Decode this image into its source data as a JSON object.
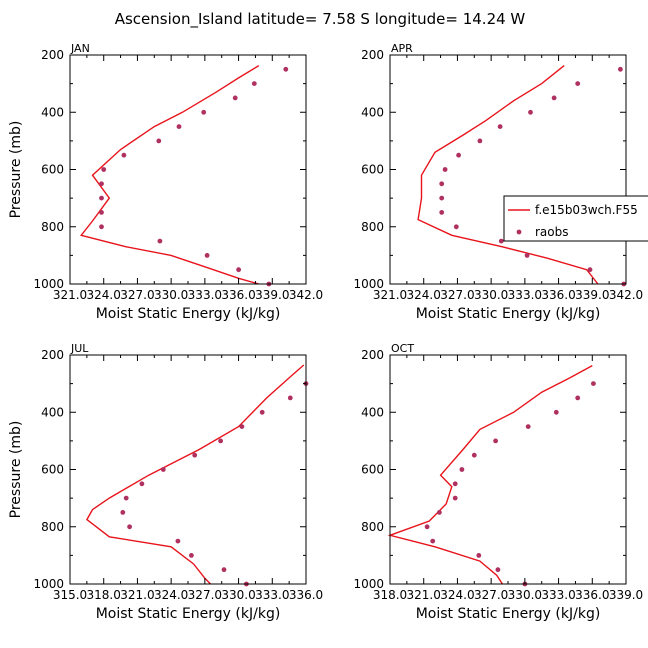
{
  "title": "Ascension_Island  latitude= 7.58 S longitude= 14.24 W",
  "colors": {
    "model": "#e8141c",
    "obs": "#b03060",
    "axis": "#000000"
  },
  "legend": {
    "model_label": "f.e15b03wch.F55",
    "obs_label": "raobs"
  },
  "chart_data": [
    {
      "type": "line",
      "month": "JAN",
      "xlabel": "Moist Static Energy (kJ/kg)",
      "ylabel": "Pressure (mb)",
      "xlim": [
        321.0,
        342.0
      ],
      "ylim": [
        1000,
        200
      ],
      "xticks": [
        "321.0",
        "324.0",
        "327.0",
        "330.0",
        "333.0",
        "336.0",
        "339.0",
        "342.0"
      ],
      "yticks": [
        "200",
        "400",
        "600",
        "800",
        "1000"
      ],
      "series": [
        {
          "name": "f.e15b03wch.F55",
          "style": "line",
          "x": [
            337.8,
            336.0,
            334.0,
            331.0,
            328.5,
            325.5,
            323.0,
            324.5,
            323.0,
            322.0,
            326.0,
            330.0,
            333.0,
            336.0,
            337.8
          ],
          "y": [
            237,
            280,
            330,
            400,
            450,
            530,
            620,
            700,
            780,
            830,
            870,
            900,
            940,
            980,
            1000
          ]
        },
        {
          "name": "raobs",
          "style": "points",
          "x": [
            340.2,
            337.4,
            335.7,
            332.9,
            330.7,
            328.9,
            325.8,
            324.0,
            323.8,
            323.8,
            323.8,
            323.8,
            329.0,
            333.2,
            336.0,
            338.7
          ],
          "y": [
            250,
            300,
            350,
            400,
            450,
            500,
            550,
            600,
            650,
            700,
            750,
            800,
            850,
            900,
            950,
            1000
          ]
        }
      ]
    },
    {
      "type": "line",
      "month": "APR",
      "xlabel": "Moist Static Energy (kJ/kg)",
      "ylabel": "Pressure (mb)",
      "xlim": [
        321.0,
        342.0
      ],
      "ylim": [
        1000,
        200
      ],
      "xticks": [
        "321.0",
        "324.0",
        "327.0",
        "330.0",
        "333.0",
        "336.0",
        "339.0",
        "342.0"
      ],
      "yticks": [
        "200",
        "400",
        "600",
        "800",
        "1000"
      ],
      "series": [
        {
          "name": "f.e15b03wch.F55",
          "style": "line",
          "x": [
            336.5,
            334.5,
            332.0,
            329.5,
            327.5,
            325.0,
            323.8,
            323.8,
            323.5,
            326.5,
            331.0,
            335.0,
            338.5,
            339.5
          ],
          "y": [
            237,
            300,
            360,
            430,
            480,
            540,
            620,
            700,
            775,
            830,
            870,
            910,
            950,
            1000
          ]
        },
        {
          "name": "raobs",
          "style": "points",
          "x": [
            341.5,
            337.7,
            335.6,
            333.5,
            330.8,
            329.0,
            327.1,
            325.9,
            325.6,
            325.6,
            325.6,
            326.9,
            330.9,
            333.2,
            338.8,
            341.8
          ],
          "y": [
            250,
            300,
            350,
            400,
            450,
            500,
            550,
            600,
            650,
            700,
            750,
            800,
            850,
            900,
            950,
            1000
          ]
        }
      ]
    },
    {
      "type": "line",
      "month": "JUL",
      "xlabel": "Moist Static Energy (kJ/kg)",
      "ylabel": "Pressure (mb)",
      "xlim": [
        315.0,
        336.0
      ],
      "ylim": [
        1000,
        200
      ],
      "xticks": [
        "315.0",
        "318.0",
        "321.0",
        "324.0",
        "327.0",
        "330.0",
        "333.0",
        "336.0"
      ],
      "yticks": [
        "200",
        "400",
        "600",
        "800",
        "1000"
      ],
      "series": [
        {
          "name": "f.e15b03wch.F55",
          "style": "line",
          "x": [
            335.8,
            334.5,
            332.5,
            330.0,
            326.5,
            322.0,
            318.5,
            317.0,
            316.5,
            318.5,
            324.0,
            326.0,
            327.0,
            327.5
          ],
          "y": [
            235,
            280,
            350,
            450,
            530,
            620,
            700,
            740,
            775,
            835,
            870,
            930,
            980,
            1000
          ]
        },
        {
          "name": "raobs",
          "style": "points",
          "x": [
            336.0,
            334.6,
            332.1,
            330.3,
            328.4,
            326.1,
            323.3,
            321.4,
            320.0,
            319.7,
            320.3,
            324.6,
            325.8,
            328.7,
            330.7
          ],
          "y": [
            300,
            350,
            400,
            450,
            500,
            550,
            600,
            650,
            700,
            750,
            800,
            850,
            900,
            950,
            1000
          ]
        }
      ]
    },
    {
      "type": "line",
      "month": "OCT",
      "xlabel": "Moist Static Energy (kJ/kg)",
      "ylabel": "Pressure (mb)",
      "xlim": [
        318.0,
        339.0
      ],
      "ylim": [
        1000,
        200
      ],
      "xticks": [
        "318.0",
        "321.0",
        "324.0",
        "327.0",
        "330.0",
        "333.0",
        "336.0",
        "339.0"
      ],
      "yticks": [
        "200",
        "400",
        "600",
        "800",
        "1000"
      ],
      "series": [
        {
          "name": "f.e15b03wch.F55",
          "style": "line",
          "x": [
            336.0,
            334.0,
            331.5,
            329.0,
            326.0,
            324.5,
            322.5,
            323.5,
            323.0,
            321.5,
            318.0,
            322.0,
            326.0,
            327.5,
            328.0
          ],
          "y": [
            237,
            280,
            330,
            400,
            460,
            530,
            620,
            660,
            720,
            780,
            830,
            870,
            920,
            970,
            1000
          ]
        },
        {
          "name": "raobs",
          "style": "points",
          "x": [
            336.1,
            334.7,
            332.8,
            330.3,
            327.4,
            325.5,
            324.4,
            323.8,
            323.8,
            322.4,
            321.3,
            321.8,
            325.9,
            327.6,
            330.0
          ],
          "y": [
            300,
            350,
            400,
            450,
            500,
            550,
            600,
            650,
            700,
            750,
            800,
            850,
            900,
            950,
            1000
          ]
        }
      ]
    }
  ]
}
